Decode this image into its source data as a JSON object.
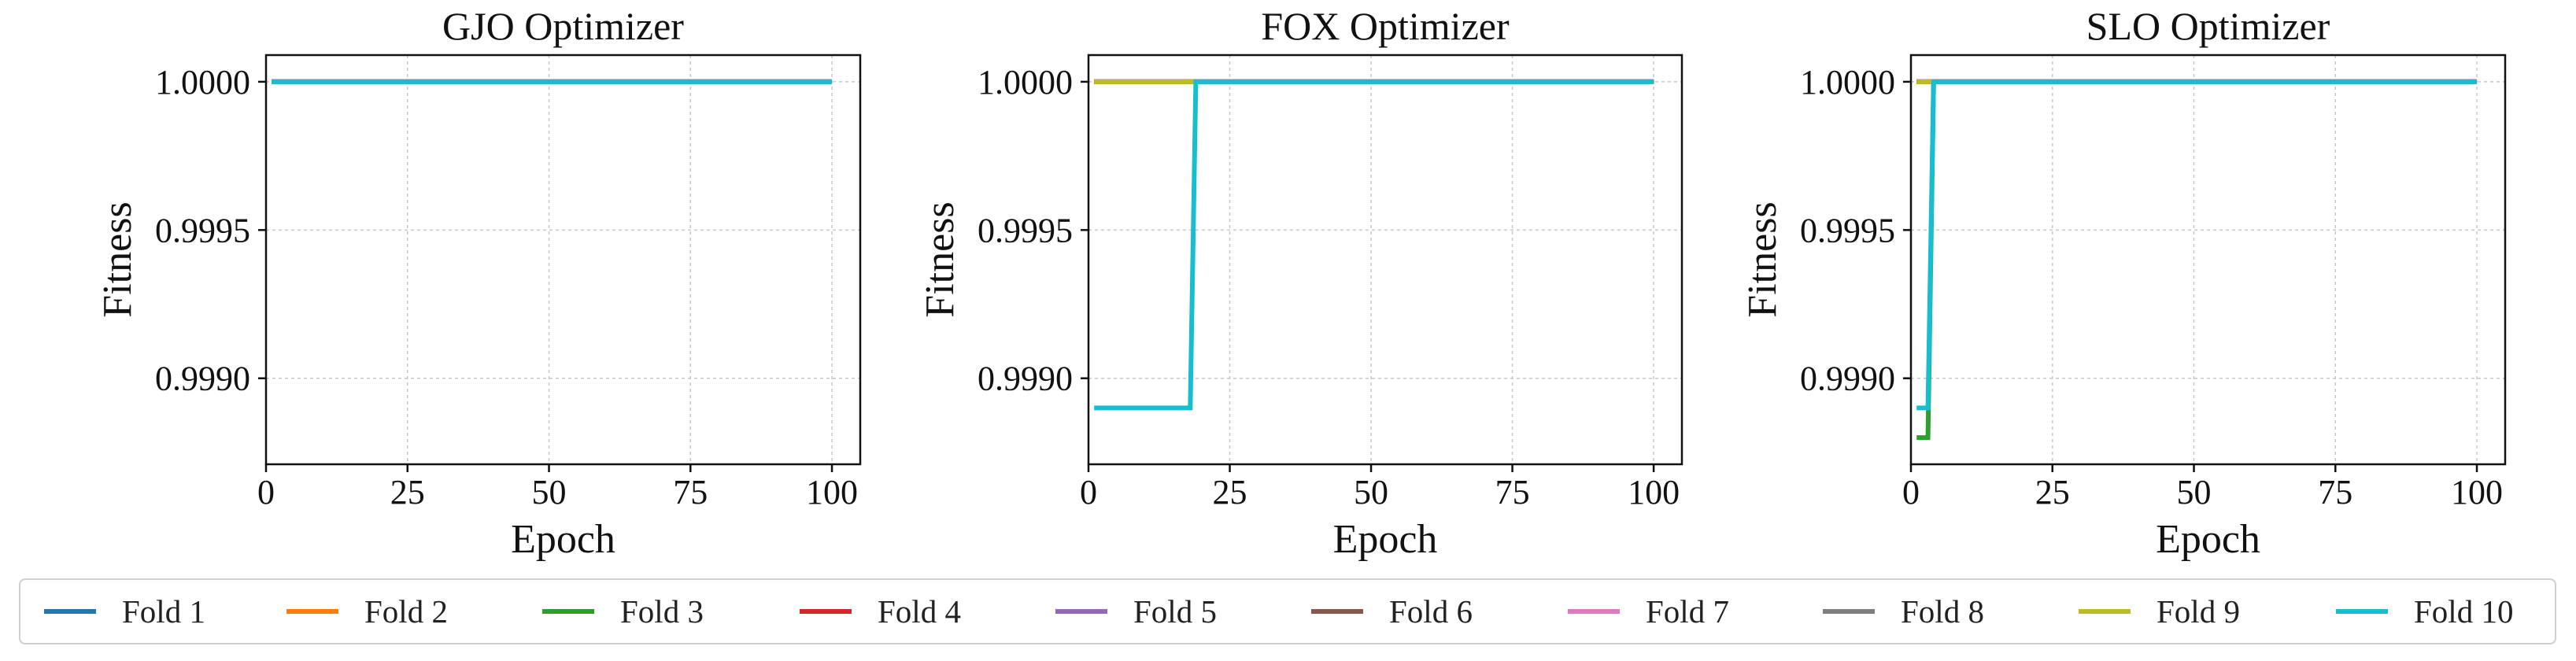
{
  "chart_data": [
    {
      "type": "line",
      "title": "GJO Optimizer",
      "xlabel": "Epoch",
      "ylabel": "Fitness",
      "xlim": [
        0,
        105
      ],
      "ylim": [
        0.99871,
        1.00009
      ],
      "xticks": [
        0,
        25,
        50,
        75,
        100
      ],
      "yticks": [
        0.999,
        0.9995,
        1.0
      ],
      "xtick_labels": [
        "0",
        "25",
        "50",
        "75",
        "100"
      ],
      "ytick_labels": [
        "0.9990",
        "0.9995",
        "1.0000"
      ],
      "grid": true,
      "series": [
        {
          "name": "Fold 1",
          "x": [
            1,
            100
          ],
          "y": [
            1.0,
            1.0
          ]
        },
        {
          "name": "Fold 2",
          "x": [
            1,
            100
          ],
          "y": [
            1.0,
            1.0
          ]
        },
        {
          "name": "Fold 3",
          "x": [
            1,
            100
          ],
          "y": [
            1.0,
            1.0
          ]
        },
        {
          "name": "Fold 4",
          "x": [
            1,
            100
          ],
          "y": [
            1.0,
            1.0
          ]
        },
        {
          "name": "Fold 5",
          "x": [
            1,
            100
          ],
          "y": [
            1.0,
            1.0
          ]
        },
        {
          "name": "Fold 6",
          "x": [
            1,
            100
          ],
          "y": [
            1.0,
            1.0
          ]
        },
        {
          "name": "Fold 7",
          "x": [
            1,
            100
          ],
          "y": [
            1.0,
            1.0
          ]
        },
        {
          "name": "Fold 8",
          "x": [
            1,
            100
          ],
          "y": [
            1.0,
            1.0
          ]
        },
        {
          "name": "Fold 9",
          "x": [
            1,
            100
          ],
          "y": [
            1.0,
            1.0
          ]
        },
        {
          "name": "Fold 10",
          "x": [
            1,
            100
          ],
          "y": [
            1.0,
            1.0
          ]
        }
      ]
    },
    {
      "type": "line",
      "title": "FOX Optimizer",
      "xlabel": "Epoch",
      "ylabel": "Fitness",
      "xlim": [
        0,
        105
      ],
      "ylim": [
        0.99871,
        1.00009
      ],
      "xticks": [
        0,
        25,
        50,
        75,
        100
      ],
      "yticks": [
        0.999,
        0.9995,
        1.0
      ],
      "xtick_labels": [
        "0",
        "25",
        "50",
        "75",
        "100"
      ],
      "ytick_labels": [
        "0.9990",
        "0.9995",
        "1.0000"
      ],
      "grid": true,
      "series": [
        {
          "name": "Fold 1",
          "x": [
            1,
            100
          ],
          "y": [
            1.0,
            1.0
          ]
        },
        {
          "name": "Fold 2",
          "x": [
            1,
            100
          ],
          "y": [
            1.0,
            1.0
          ]
        },
        {
          "name": "Fold 3",
          "x": [
            1,
            100
          ],
          "y": [
            1.0,
            1.0
          ]
        },
        {
          "name": "Fold 4",
          "x": [
            1,
            100
          ],
          "y": [
            1.0,
            1.0
          ]
        },
        {
          "name": "Fold 5",
          "x": [
            1,
            100
          ],
          "y": [
            1.0,
            1.0
          ]
        },
        {
          "name": "Fold 6",
          "x": [
            1,
            100
          ],
          "y": [
            1.0,
            1.0
          ]
        },
        {
          "name": "Fold 7",
          "x": [
            1,
            100
          ],
          "y": [
            1.0,
            1.0
          ]
        },
        {
          "name": "Fold 8",
          "x": [
            1,
            100
          ],
          "y": [
            1.0,
            1.0
          ]
        },
        {
          "name": "Fold 9",
          "x": [
            1,
            100
          ],
          "y": [
            1.0,
            1.0
          ]
        },
        {
          "name": "Fold 10",
          "x": [
            1,
            18,
            19,
            100
          ],
          "y": [
            0.9989,
            0.9989,
            1.0,
            1.0
          ]
        }
      ]
    },
    {
      "type": "line",
      "title": "SLO Optimizer",
      "xlabel": "Epoch",
      "ylabel": "Fitness",
      "xlim": [
        0,
        105
      ],
      "ylim": [
        0.99871,
        1.00009
      ],
      "xticks": [
        0,
        25,
        50,
        75,
        100
      ],
      "yticks": [
        0.999,
        0.9995,
        1.0
      ],
      "xtick_labels": [
        "0",
        "25",
        "50",
        "75",
        "100"
      ],
      "ytick_labels": [
        "0.9990",
        "0.9995",
        "1.0000"
      ],
      "grid": true,
      "series": [
        {
          "name": "Fold 1",
          "x": [
            1,
            100
          ],
          "y": [
            1.0,
            1.0
          ]
        },
        {
          "name": "Fold 2",
          "x": [
            1,
            100
          ],
          "y": [
            1.0,
            1.0
          ]
        },
        {
          "name": "Fold 3",
          "x": [
            1,
            3,
            4,
            100
          ],
          "y": [
            0.9988,
            0.9988,
            1.0,
            1.0
          ]
        },
        {
          "name": "Fold 4",
          "x": [
            1,
            100
          ],
          "y": [
            1.0,
            1.0
          ]
        },
        {
          "name": "Fold 5",
          "x": [
            1,
            100
          ],
          "y": [
            1.0,
            1.0
          ]
        },
        {
          "name": "Fold 6",
          "x": [
            1,
            100
          ],
          "y": [
            1.0,
            1.0
          ]
        },
        {
          "name": "Fold 7",
          "x": [
            1,
            100
          ],
          "y": [
            1.0,
            1.0
          ]
        },
        {
          "name": "Fold 8",
          "x": [
            1,
            100
          ],
          "y": [
            1.0,
            1.0
          ]
        },
        {
          "name": "Fold 9",
          "x": [
            1,
            100
          ],
          "y": [
            1.0,
            1.0
          ]
        },
        {
          "name": "Fold 10",
          "x": [
            1,
            3,
            4,
            100
          ],
          "y": [
            0.9989,
            0.9989,
            1.0,
            1.0
          ]
        }
      ]
    }
  ],
  "legend": {
    "placement": "bottom",
    "items": [
      {
        "label": "Fold 1",
        "color": "#1f77b4"
      },
      {
        "label": "Fold 2",
        "color": "#ff7f0e"
      },
      {
        "label": "Fold 3",
        "color": "#2ca02c"
      },
      {
        "label": "Fold 4",
        "color": "#d62728"
      },
      {
        "label": "Fold 5",
        "color": "#9467bd"
      },
      {
        "label": "Fold 6",
        "color": "#8c564b"
      },
      {
        "label": "Fold 7",
        "color": "#e377c2"
      },
      {
        "label": "Fold 8",
        "color": "#7f7f7f"
      },
      {
        "label": "Fold 9",
        "color": "#bcbd22"
      },
      {
        "label": "Fold 10",
        "color": "#17becf"
      }
    ]
  }
}
